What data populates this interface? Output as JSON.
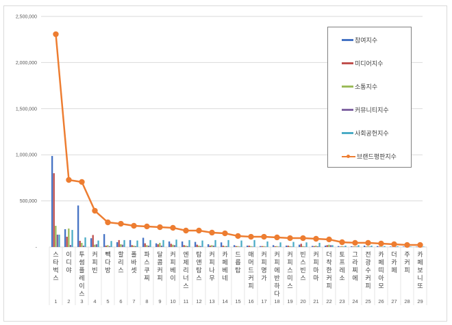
{
  "chart_data": {
    "type": "bar",
    "title": "",
    "xlabel": "",
    "ylabel": "",
    "ylim": [
      0,
      2500000
    ],
    "yticks": [
      "-",
      "500,000",
      "1,000,000",
      "1,500,000",
      "2,000,000",
      "2,500,000"
    ],
    "grid": true,
    "legend_position": "right-inside",
    "categories": [
      "스타벅스",
      "이디야",
      "투썸플레이스",
      "커피빈",
      "빽다방",
      "할리스",
      "폴바셋",
      "파스쿠찌",
      "달콤커피",
      "커피베이",
      "엔제리너스",
      "탐앤탐스",
      "커피나무",
      "카페베네",
      "드롭탑",
      "매머드커피",
      "커피명가",
      "커피에반하다",
      "커피스미스",
      "빈스빈스",
      "커피마마",
      "더착한커피",
      "토프레소",
      "그라찌에",
      "전광수커피",
      "카페띠아모",
      "더카페",
      "주커피",
      "카페보니또"
    ],
    "ranks": [
      "1",
      "2",
      "3",
      "4",
      "5",
      "6",
      "7",
      "8",
      "9",
      "10",
      "11",
      "12",
      "13",
      "14",
      "15",
      "16",
      "17",
      "18",
      "19",
      "20",
      "21",
      "22",
      "23",
      "24",
      "25",
      "26",
      "27",
      "28",
      "29"
    ],
    "series": [
      {
        "name": "참여지수",
        "kind": "bar",
        "color": "#4472c4",
        "values": [
          987000,
          193000,
          450000,
          95000,
          140000,
          52000,
          75000,
          100000,
          40000,
          60000,
          60000,
          55000,
          30000,
          50000,
          20000,
          15000,
          10000,
          20000,
          15000,
          25000,
          12000,
          15000,
          10000,
          8000,
          15000,
          10000,
          5000,
          5000,
          3000
        ]
      },
      {
        "name": "미디어지수",
        "kind": "bar",
        "color": "#c0504d",
        "values": [
          800000,
          111000,
          67000,
          130000,
          15000,
          75000,
          20000,
          40000,
          30000,
          35000,
          20000,
          25000,
          15000,
          15000,
          10000,
          15000,
          10000,
          8000,
          15000,
          35000,
          10000,
          20000,
          5000,
          5000,
          5000,
          5000,
          3000,
          3000,
          2000
        ]
      },
      {
        "name": "소통지수",
        "kind": "bar",
        "color": "#9bbb59",
        "values": [
          230000,
          200000,
          45000,
          25000,
          20000,
          30000,
          15000,
          20000,
          45000,
          25000,
          15000,
          15000,
          20000,
          10000,
          10000,
          10000,
          10000,
          10000,
          10000,
          10000,
          15000,
          25000,
          10000,
          8000,
          10000,
          5000,
          3000,
          3000,
          2000
        ]
      },
      {
        "name": "커뮤니티지수",
        "kind": "bar",
        "color": "#8064a2",
        "values": [
          134000,
          22000,
          15000,
          30000,
          10000,
          25000,
          10000,
          15000,
          15000,
          20000,
          10000,
          10000,
          15000,
          10000,
          5000,
          5000,
          5000,
          5000,
          5000,
          5000,
          8000,
          20000,
          5000,
          5000,
          5000,
          3000,
          2000,
          2000,
          1000
        ]
      },
      {
        "name": "사회공헌지수",
        "kind": "bar",
        "color": "#4bacc6",
        "values": [
          134000,
          185000,
          104000,
          70000,
          65000,
          75000,
          70000,
          75000,
          75000,
          80000,
          75000,
          70000,
          75000,
          75000,
          70000,
          75000,
          60000,
          50000,
          55000,
          50000,
          45000,
          20000,
          15000,
          20000,
          15000,
          10000,
          8000,
          5000,
          5000
        ]
      },
      {
        "name": "브랜드평판지수",
        "kind": "line",
        "color": "#ed7d31",
        "values": [
          2307000,
          727000,
          705000,
          393000,
          267000,
          252000,
          230000,
          223000,
          215000,
          208000,
          178000,
          178000,
          156000,
          148000,
          119000,
          111000,
          111000,
          104000,
          96000,
          96000,
          89000,
          82000,
          52000,
          45000,
          45000,
          37000,
          30000,
          22000,
          22000
        ]
      }
    ]
  },
  "legend": {
    "items": [
      {
        "label": "참여지수",
        "color": "#4472c4",
        "kind": "bar"
      },
      {
        "label": "미디어지수",
        "color": "#c0504d",
        "kind": "bar"
      },
      {
        "label": "소통지수",
        "color": "#9bbb59",
        "kind": "bar"
      },
      {
        "label": "커뮤니티지수",
        "color": "#8064a2",
        "kind": "bar"
      },
      {
        "label": "사회공헌지수",
        "color": "#4bacc6",
        "kind": "bar"
      },
      {
        "label": "브랜드평판지수",
        "color": "#ed7d31",
        "kind": "line"
      }
    ]
  }
}
